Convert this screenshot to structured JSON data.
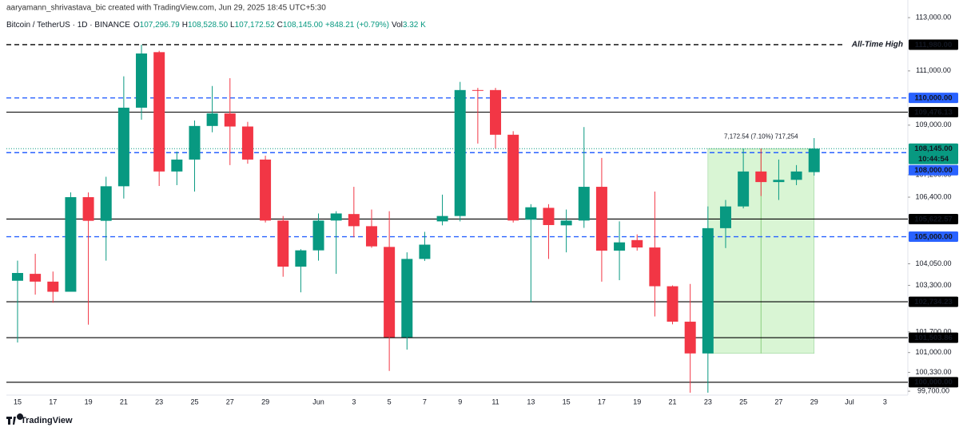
{
  "chart_data": {
    "type": "candlestick",
    "credit": "aaryamann_shrivastava_bic created with TradingView.com, Jun 29, 2025 18:45 UTC+5:30",
    "symbol": "Bitcoin / TetherUS · 1D · BINANCE",
    "legend_items": [
      [
        "O",
        "107,296.79"
      ],
      [
        "H",
        "108,528.50"
      ],
      [
        "L",
        "107,172.52"
      ],
      [
        "C",
        "108,145.00"
      ]
    ],
    "change": "+848.21 (+0.79%)",
    "volume_label": "Vol",
    "volume": "3.32 K",
    "footer": "TradingView",
    "categories": [
      "15",
      null,
      "17",
      null,
      "19",
      null,
      "21",
      null,
      "23",
      null,
      "25",
      null,
      "27",
      null,
      "29",
      null,
      null,
      "Jun",
      null,
      "3",
      null,
      "5",
      null,
      "7",
      null,
      "9",
      null,
      "11",
      null,
      "13",
      null,
      "15",
      null,
      "17",
      null,
      "19",
      null,
      "21",
      null,
      "23",
      null,
      "25",
      null,
      "27",
      null,
      "29",
      null,
      "Jul",
      null,
      "3"
    ],
    "open": [
      103460,
      103700,
      103430,
      103080,
      106400,
      105560,
      106790,
      109640,
      111700,
      107320,
      107750,
      108970,
      109430,
      108950,
      107750,
      105570,
      103950,
      104520,
      105570,
      105800,
      105370,
      104640,
      101520,
      104220,
      105540,
      105730,
      110290,
      110290,
      108650,
      105600,
      106020,
      105400,
      105570,
      106770,
      104510,
      104880,
      104620,
      103270,
      102050,
      100970,
      105300,
      106070,
      107320,
      106940,
      107020,
      107296.79,
      null,
      null,
      null,
      null
    ],
    "high": [
      104160,
      104400,
      103780,
      106570,
      106570,
      107130,
      110800,
      111980,
      111750,
      108040,
      109170,
      110440,
      110730,
      109120,
      107890,
      105730,
      104560,
      105820,
      105900,
      106770,
      105960,
      105900,
      104450,
      105170,
      106490,
      110590,
      110370,
      110370,
      108780,
      106150,
      106150,
      105960,
      108930,
      107810,
      105540,
      105080,
      106600,
      103300,
      103350,
      106070,
      106300,
      108150,
      108150,
      107750,
      107550,
      108528.5,
      null,
      null,
      null,
      null
    ],
    "low": [
      101340,
      102980,
      102700,
      103080,
      101950,
      104160,
      106350,
      109200,
      106800,
      106830,
      106600,
      108740,
      107550,
      107600,
      105500,
      103600,
      103060,
      104160,
      103700,
      104980,
      104610,
      100380,
      101100,
      104150,
      105400,
      105540,
      108330,
      108150,
      105500,
      102710,
      104220,
      104450,
      105310,
      103430,
      103480,
      104510,
      102230,
      101960,
      99650,
      99650,
      104600,
      106000,
      106440,
      106300,
      106830,
      107172.52,
      null,
      null,
      null,
      null
    ],
    "close": [
      103730,
      103430,
      103080,
      106400,
      105560,
      106790,
      109640,
      111650,
      107320,
      107750,
      108970,
      109430,
      108950,
      107750,
      105570,
      103950,
      104520,
      105570,
      105820,
      105370,
      104660,
      101520,
      104220,
      104720,
      105730,
      110290,
      110270,
      108650,
      105570,
      106040,
      105410,
      105570,
      106770,
      104510,
      104800,
      104620,
      103270,
      102050,
      100970,
      105300,
      106070,
      107320,
      106940,
      107020,
      107320,
      108145.0,
      null,
      null,
      null,
      null
    ],
    "up_color": "#089981",
    "down_color": "#f23645",
    "log_scale": true,
    "ylim": [
      99570,
      113670
    ],
    "yticks": [
      {
        "value": 113000,
        "label": "113,000.00"
      },
      {
        "value": 111000,
        "label": "111,000.00"
      },
      {
        "value": 109000,
        "label": "109,000.00"
      },
      {
        "value": 107200,
        "label": "107,200.00"
      },
      {
        "value": 106400,
        "label": "106,400.00"
      },
      {
        "value": 104050,
        "label": "104,050.00"
      },
      {
        "value": 103300,
        "label": "103,300.00"
      },
      {
        "value": 101700,
        "label": "101,700.00"
      },
      {
        "value": 101000,
        "label": "101,000.00"
      },
      {
        "value": 100330,
        "label": "100,330.00"
      },
      {
        "value": 99700,
        "label": "99,700.00"
      }
    ],
    "levels": [
      {
        "value": 111980,
        "label": "111,980.00",
        "color": "#000000",
        "style": "dashed",
        "note": "All-Time High"
      },
      {
        "value": 110000,
        "label": "110,000.00",
        "color": "#2962ff",
        "style": "dashed"
      },
      {
        "value": 109476.13,
        "label": "109,476.13",
        "color": "#000000",
        "style": "solid"
      },
      {
        "value": 108000,
        "label": "108,000.00",
        "color": "#2962ff",
        "style": "dashed"
      },
      {
        "value": 105622.57,
        "label": "105,622.57",
        "color": "#000000",
        "style": "solid"
      },
      {
        "value": 105000,
        "label": "105,000.00",
        "color": "#2962ff",
        "style": "dashed"
      },
      {
        "value": 102734.23,
        "label": "102,734.23",
        "color": "#000000",
        "style": "solid"
      },
      {
        "value": 101503.86,
        "label": "101,503.86",
        "color": "#000000",
        "style": "solid"
      },
      {
        "value": 100000,
        "label": "100,000.00",
        "color": "#000000",
        "style": "solid"
      }
    ],
    "last": {
      "value": 108145.0,
      "label": "108,145.00",
      "countdown": "10:44:54",
      "color": "#089981"
    },
    "measure": {
      "label": "7,172.54 (7.10%) 717,254",
      "low": 100972.46,
      "high": 108145.0,
      "start": "23",
      "end": "29"
    }
  }
}
